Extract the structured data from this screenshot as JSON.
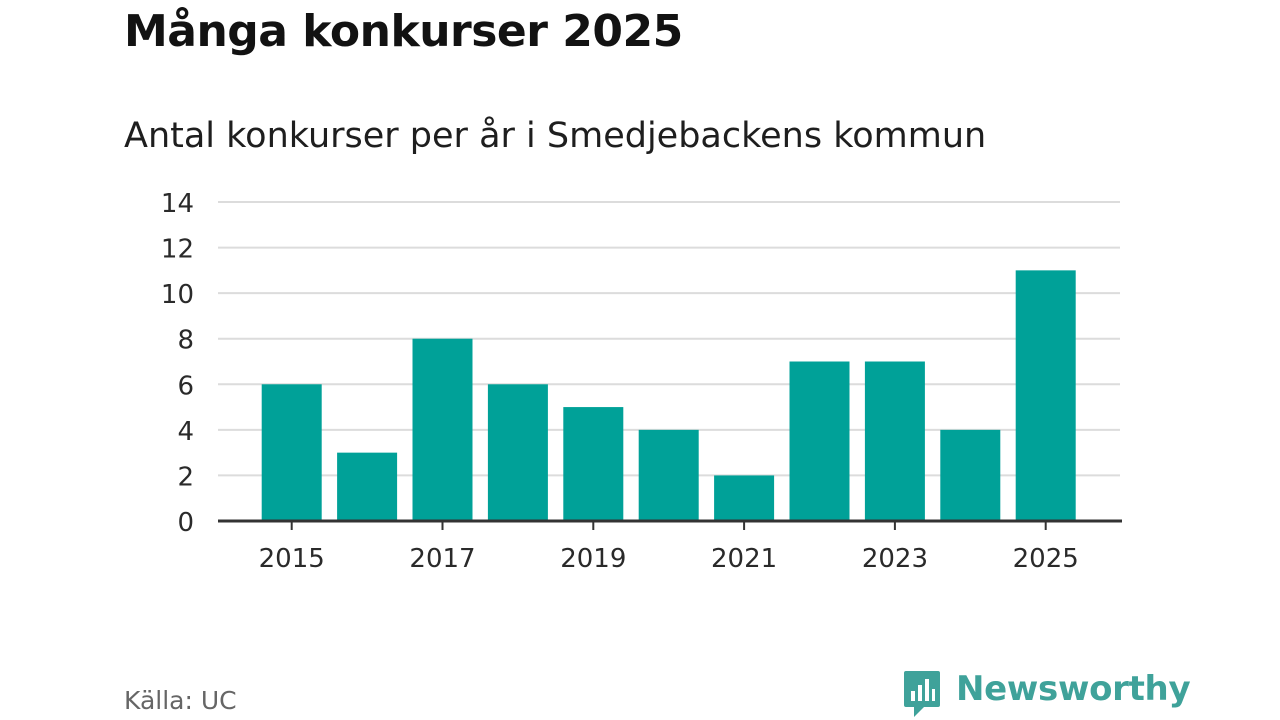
{
  "title": "Många konkurser 2025",
  "subtitle": "Antal konkurser per år i Smedjebackens kommun",
  "source": "Källa: UC",
  "brand": {
    "name": "Newsworthy",
    "icon": "newsworthy-logo-icon",
    "color": "#3fa29a"
  },
  "colors": {
    "bar": "#00a198",
    "grid": "#dcdcdc",
    "axis": "#333333"
  },
  "chart_data": {
    "type": "bar",
    "title": "Många konkurser 2025",
    "subtitle": "Antal konkurser per år i Smedjebackens kommun",
    "xlabel": "",
    "ylabel": "",
    "categories": [
      "2015",
      "2016",
      "2017",
      "2018",
      "2019",
      "2020",
      "2021",
      "2022",
      "2023",
      "2024",
      "2025"
    ],
    "values": [
      6,
      3,
      8,
      6,
      5,
      4,
      2,
      7,
      7,
      4,
      11
    ],
    "x_tick_labels": [
      "2015",
      "2017",
      "2019",
      "2021",
      "2023",
      "2025"
    ],
    "y_ticks": [
      0,
      2,
      4,
      6,
      8,
      10,
      12,
      14
    ],
    "ylim": [
      0,
      14
    ],
    "grid": true,
    "legend": "none"
  }
}
